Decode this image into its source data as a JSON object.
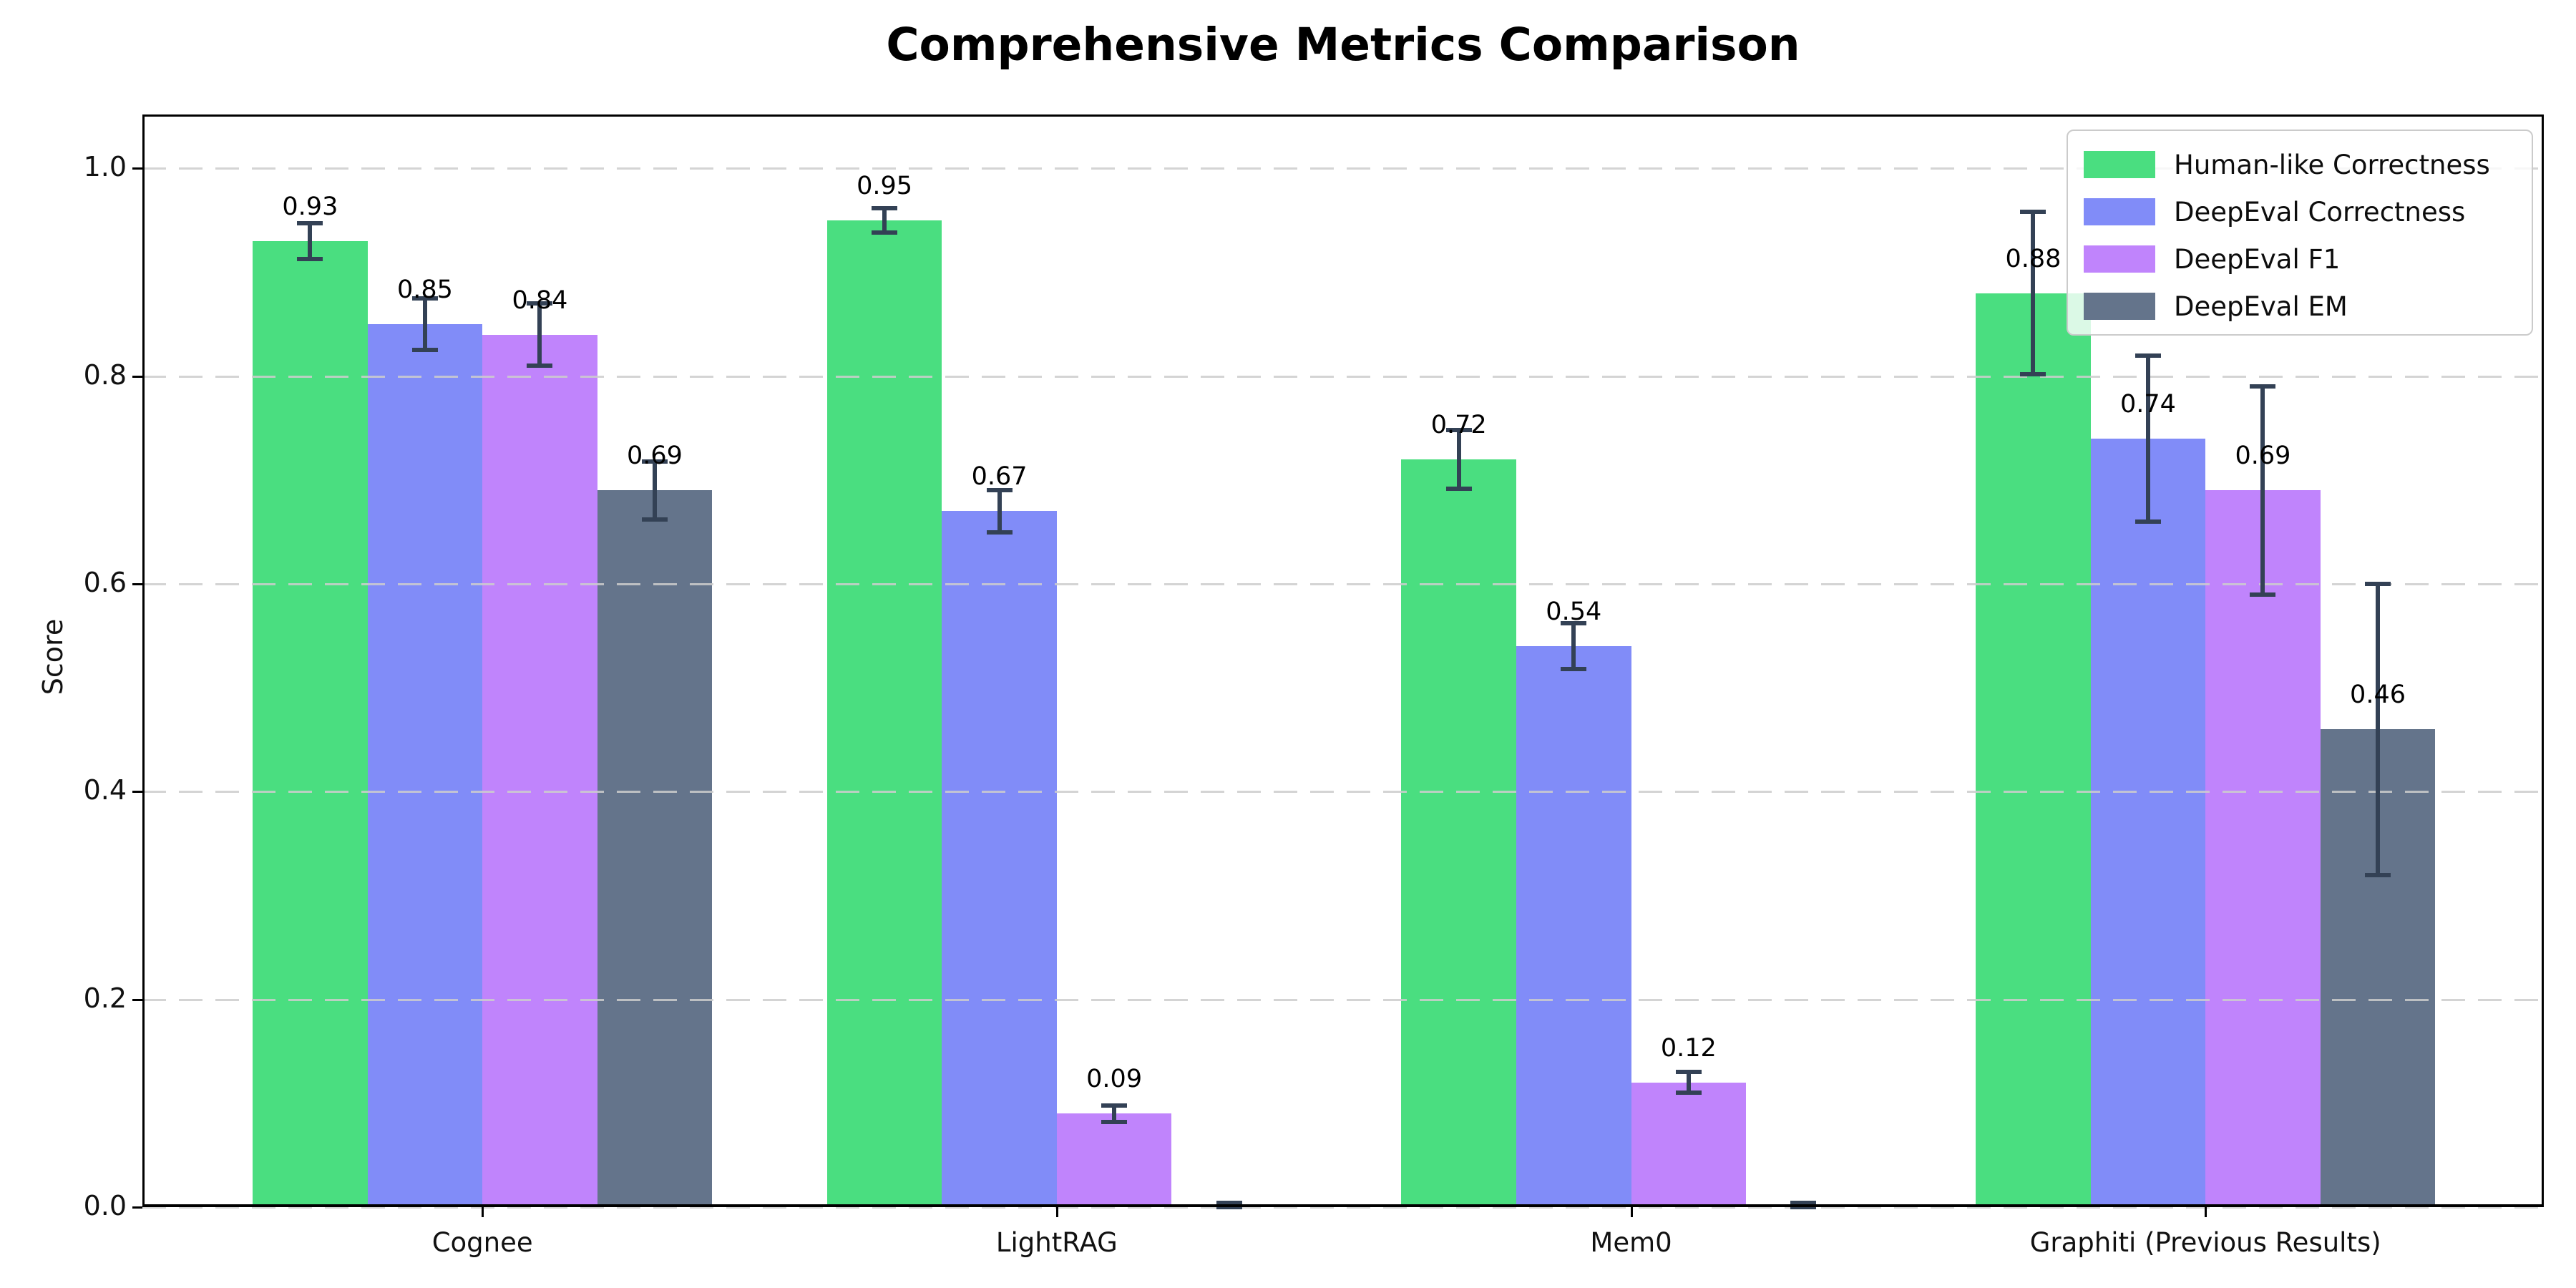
{
  "figure": {
    "title": "Comprehensive Metrics Comparison"
  },
  "chart_data": {
    "type": "bar",
    "title": "Comprehensive Metrics Comparison",
    "xlabel": "",
    "ylabel": "Score",
    "categories": [
      "Cognee",
      "LightRAG",
      "Mem0",
      "Graphiti (Previous Results)"
    ],
    "ylim": [
      0,
      1.05
    ],
    "grid": "horizontal dashed lightgray, drawn over bars",
    "legend_position": "upper right",
    "error_bar_color": "#334155",
    "y_ticks": [
      {
        "v": 0.0,
        "label": "0.0"
      },
      {
        "v": 0.2,
        "label": "0.2"
      },
      {
        "v": 0.4,
        "label": "0.4"
      },
      {
        "v": 0.6,
        "label": "0.6"
      },
      {
        "v": 0.8,
        "label": "0.8"
      },
      {
        "v": 1.0,
        "label": "1.0"
      }
    ],
    "series": [
      {
        "name": "Human-like Correctness",
        "color": "#4ade80",
        "values": [
          0.93,
          0.95,
          0.72,
          0.88
        ],
        "errors": [
          0.017,
          0.012,
          0.028,
          0.078
        ],
        "bar_labels": [
          "0.93",
          "0.95",
          "0.72",
          "0.88"
        ]
      },
      {
        "name": "DeepEval Correctness",
        "color": "#818cf8",
        "values": [
          0.85,
          0.67,
          0.54,
          0.74
        ],
        "errors": [
          0.025,
          0.02,
          0.022,
          0.08
        ],
        "bar_labels": [
          "0.85",
          "0.67",
          "0.54",
          "0.74"
        ]
      },
      {
        "name": "DeepEval F1",
        "color": "#c084fc",
        "values": [
          0.84,
          0.09,
          0.12,
          0.69
        ],
        "errors": [
          0.03,
          0.008,
          0.01,
          0.1
        ],
        "bar_labels": [
          "0.84",
          "0.09",
          "0.12",
          "0.69"
        ]
      },
      {
        "name": "DeepEval EM",
        "color": "#64748b",
        "values": [
          0.69,
          0.0,
          0.0,
          0.46
        ],
        "errors": [
          0.028,
          0.004,
          0.004,
          0.14
        ],
        "bar_labels": [
          "0.69",
          "",
          "",
          "0.46"
        ]
      }
    ]
  }
}
